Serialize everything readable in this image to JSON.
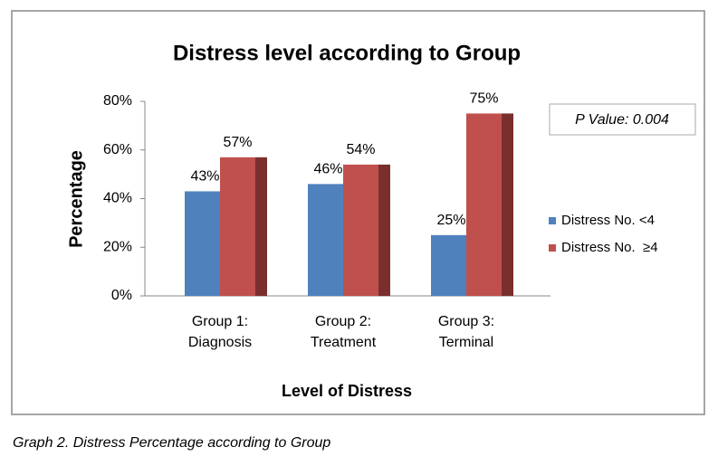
{
  "chart_data": {
    "type": "bar",
    "title": "Distress level according to Group",
    "x_label": "Level of Distress",
    "y_label": "Percentage",
    "categories": [
      "Group 1: Diagnosis",
      "Group 2: Treatment",
      "Group 3: Terminal"
    ],
    "series": [
      {
        "name": "Distress No. <4",
        "color": "#4f81bd",
        "values": [
          43,
          46,
          25
        ],
        "value_labels": [
          "43%",
          "46%",
          "25%"
        ]
      },
      {
        "name": "Distress No.  ≥4",
        "color": "#c0504d",
        "values": [
          57,
          54,
          75
        ],
        "value_labels": [
          "57%",
          "54%",
          "75%"
        ]
      }
    ],
    "ylim": [
      0,
      80
    ],
    "yticks": [
      {
        "value": 0,
        "label": "0%"
      },
      {
        "value": 20,
        "label": "20%"
      },
      {
        "value": 40,
        "label": "40%"
      },
      {
        "value": 60,
        "label": "60%"
      },
      {
        "value": 80,
        "label": "80%"
      }
    ],
    "grid": false,
    "legend": "right",
    "annotation": "P Value: 0.004",
    "caption": "Graph 2. Distress Percentage according to Group"
  }
}
